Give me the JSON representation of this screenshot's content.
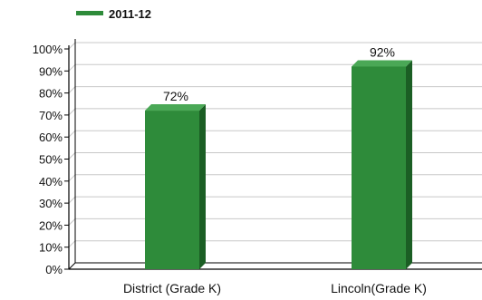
{
  "chart_data": {
    "type": "bar",
    "categories": [
      "District (Grade K)",
      "Lincoln(Grade K)"
    ],
    "series": [
      {
        "name": "2011-12",
        "values": [
          72,
          92
        ],
        "color": "#2e8b3a"
      }
    ],
    "data_labels": [
      "72%",
      "92%"
    ],
    "y_ticks": [
      0,
      10,
      20,
      30,
      40,
      50,
      60,
      70,
      80,
      90,
      100
    ],
    "y_tick_labels": [
      "0%",
      "10%",
      "20%",
      "30%",
      "40%",
      "50%",
      "60%",
      "70%",
      "80%",
      "90%",
      "100%"
    ],
    "ylim": [
      0,
      100
    ],
    "grid": true,
    "legend_position": "top-left",
    "title": "",
    "xlabel": "",
    "ylabel": ""
  },
  "colors": {
    "bar_front": "#2e8b3a",
    "bar_side": "#1b5e24",
    "bar_top": "#4aa856",
    "grid": "#c8c8c8",
    "axis": "#000000"
  }
}
